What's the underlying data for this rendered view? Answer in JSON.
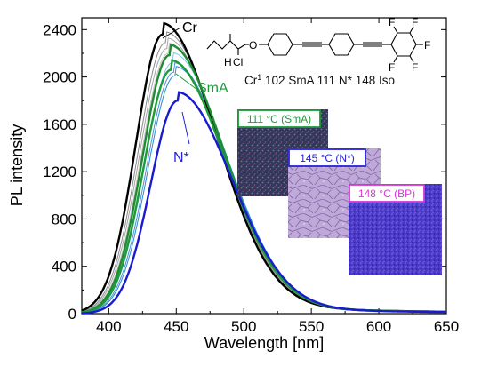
{
  "chart_data": {
    "type": "line",
    "xlabel": "Wavelength [nm]",
    "ylabel": "PL intensity",
    "xlim": [
      380,
      650
    ],
    "ylim": [
      0,
      2500
    ],
    "xticks": [
      400,
      450,
      500,
      550,
      600,
      650
    ],
    "yticks": [
      0,
      400,
      800,
      1200,
      1600,
      2000,
      2400
    ],
    "grid": false,
    "series": [
      {
        "name": "Cr",
        "color": "#000000",
        "width": 2.4,
        "peak_x": 440,
        "peak_y": 2360
      },
      {
        "color": "#8a8a8a",
        "width": 1.0,
        "peak_x": 442,
        "peak_y": 2290
      },
      {
        "color": "#a5a5a5",
        "width": 1.0,
        "peak_x": 443,
        "peak_y": 2240
      },
      {
        "color": "#c4c4c4",
        "width": 1.0,
        "peak_x": 444,
        "peak_y": 2200
      },
      {
        "color": "#1e8c32",
        "width": 2.4,
        "peak_x": 445,
        "peak_y": 2185
      },
      {
        "name": "SmA",
        "color": "#1e9a3a",
        "width": 2.4,
        "peak_x": 446,
        "peak_y": 2060
      },
      {
        "color": "#7fc8e8",
        "width": 1.0,
        "peak_x": 447,
        "peak_y": 2120
      },
      {
        "color": "#4a90d8",
        "width": 1.0,
        "peak_x": 448,
        "peak_y": 2040
      },
      {
        "color": "#2a8ad0",
        "width": 1.0,
        "peak_x": 449,
        "peak_y": 2010
      },
      {
        "name": "N*",
        "color": "#1a1ad0",
        "width": 2.4,
        "peak_x": 451,
        "peak_y": 1800
      }
    ],
    "annotations": {
      "cr": "Cr",
      "sma": "SmA",
      "nstar": "N*"
    }
  },
  "molecule": {
    "h_label": "H",
    "cl_label": "Cl",
    "o_label": "O",
    "f_label": "F"
  },
  "phase_sequence": {
    "cr": "Cr",
    "cr_sup": "1",
    "t1": "102",
    "sma": "SmA",
    "t2": "111",
    "nstar": "N*",
    "t3": "148",
    "iso": "Iso"
  },
  "insets": [
    {
      "label": "111 °C (SmA)",
      "color": "#1e9a3a"
    },
    {
      "label": "145 °C (N*)",
      "color": "#2424d8"
    },
    {
      "label": "148 °C (BP)",
      "color": "#d838d8"
    }
  ]
}
